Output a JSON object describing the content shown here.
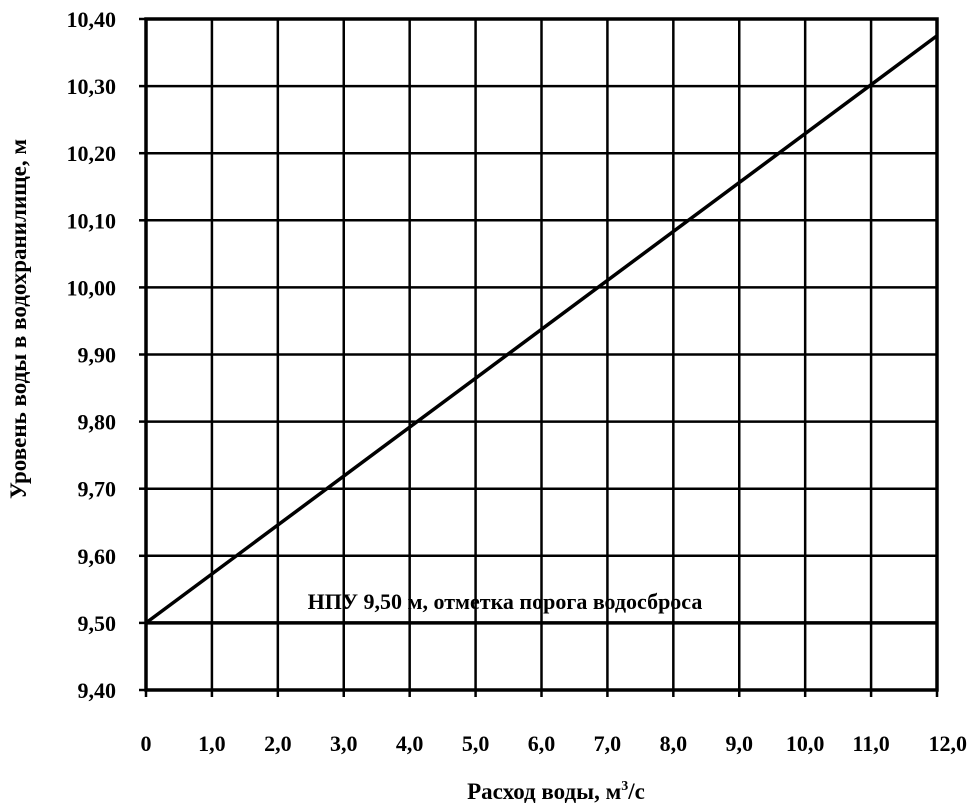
{
  "chart_data": {
    "type": "line",
    "title": "",
    "xlabel": "Расход воды, м",
    "xlabel_sup": "3",
    "xlabel_suffix": "/с",
    "ylabel": "Уровень воды в водохранилище, м",
    "xlim": [
      0,
      12
    ],
    "ylim": [
      9.4,
      10.4
    ],
    "grid": true,
    "x_ticks": [
      0,
      1,
      2,
      3,
      4,
      5,
      6,
      7,
      8,
      9,
      10,
      11,
      12
    ],
    "x_tick_labels": [
      "0",
      "1,0",
      "2,0",
      "3,0",
      "4,0",
      "5,0",
      "6,0",
      "7,0",
      "8,0",
      "9,0",
      "10,0",
      "11,0",
      "12,0"
    ],
    "y_ticks": [
      9.4,
      9.5,
      9.6,
      9.7,
      9.8,
      9.9,
      10.0,
      10.1,
      10.2,
      10.3,
      10.4
    ],
    "y_tick_labels": [
      "9,40",
      "9,50",
      "9,60",
      "9,70",
      "9,80",
      "9,90",
      "10,00",
      "10,10",
      "10,20",
      "10,30",
      "10,40"
    ],
    "series": [
      {
        "x": [
          0,
          12
        ],
        "y": [
          9.5,
          10.375
        ]
      }
    ],
    "reference_lines": [
      {
        "y": 9.5,
        "label": "НПУ 9,50 м, отметка порога водосброса"
      }
    ],
    "colors": {
      "line": "#000000",
      "grid": "#000000",
      "background": "#ffffff"
    }
  }
}
